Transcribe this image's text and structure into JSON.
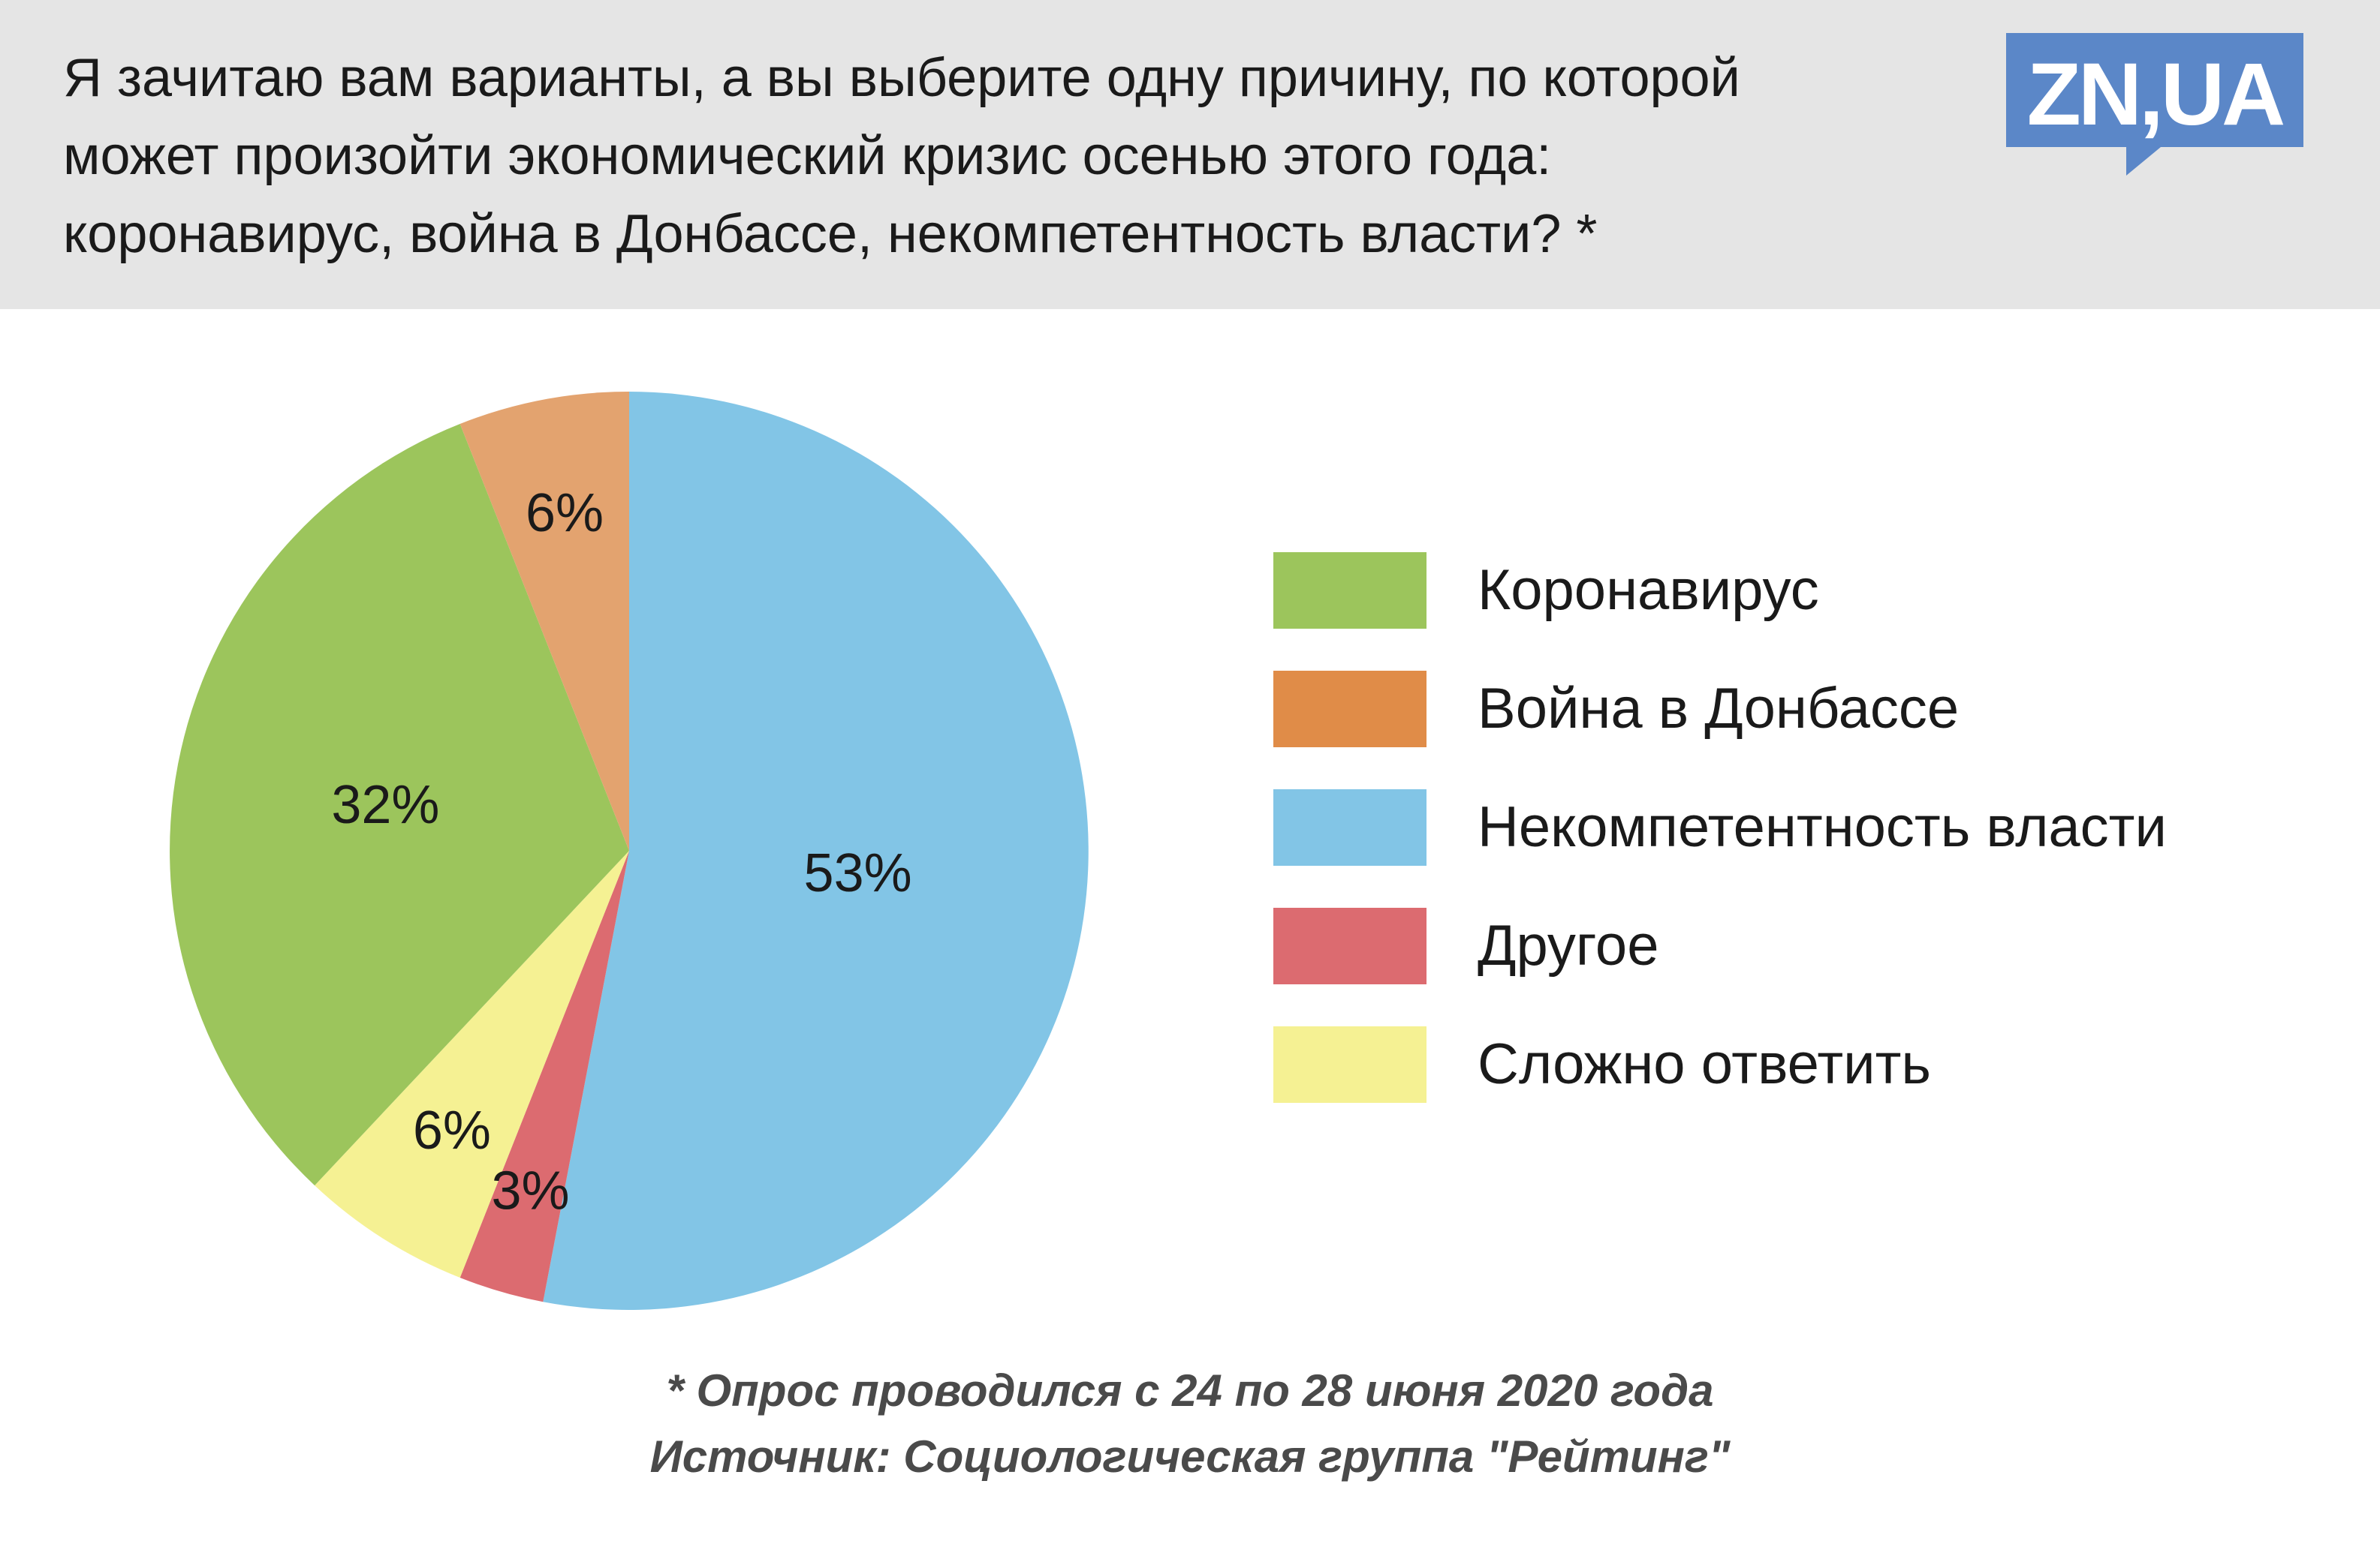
{
  "header": {
    "title_lines": [
      "Я зачитаю вам варианты, а вы выберите одну причину, по которой",
      "может произойти экономический кризис осенью этого года:",
      "коронавирус, война в Донбассе, некомпетентность власти? *"
    ],
    "logo_text": "ZN,UA"
  },
  "colors": {
    "header_bg": "#e5e5e5",
    "logo_bg": "#5b87c8",
    "slices": {
      "Некомпетентность власти": "#82c5e6",
      "Другое": "#dc6b70",
      "Сложно ответить": "#f5f193",
      "Коронавирус": "#9cc55c",
      "Война в Донбассе": "#e3a36f"
    },
    "legend": {
      "Коронавирус": "#9cc55c",
      "Война в Донбассе": "#e08c48",
      "Некомпетентность власти": "#82c5e6",
      "Другое": "#dc6b70",
      "Сложно ответить": "#f5f193"
    }
  },
  "chart_data": {
    "type": "pie",
    "categories": [
      "Некомпетентность власти",
      "Другое",
      "Сложно ответить",
      "Коронавирус",
      "Война в Донбассе"
    ],
    "values": [
      53,
      3,
      6,
      32,
      6
    ],
    "labels": [
      "53%",
      "3%",
      "6%",
      "32%",
      "6%"
    ],
    "legend": [
      "Коронавирус",
      "Война в Донбассе",
      "Некомпетентность власти",
      "Другое",
      "Сложно ответить"
    ],
    "legend_position": "right",
    "start": "top, clockwise"
  },
  "footnote": {
    "line1": "* Опрос проводился с 24 по 28 июня 2020 года",
    "line2": "Источник: Социологическая группа \"Рейтинг\""
  }
}
